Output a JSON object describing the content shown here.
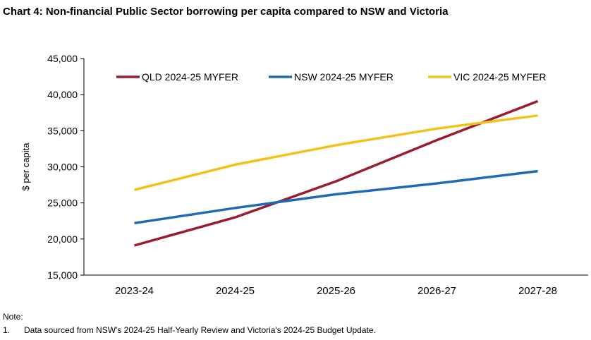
{
  "chart_data": {
    "type": "line",
    "title": "Chart 4: Non-financial Public Sector borrowing per capita compared to NSW and Victoria",
    "xlabel": "",
    "ylabel": "$ per capita",
    "categories": [
      "2023-24",
      "2024-25",
      "2025-26",
      "2026-27",
      "2027-28"
    ],
    "ylim": [
      15000,
      45000
    ],
    "yticks": [
      15000,
      20000,
      25000,
      30000,
      35000,
      40000,
      45000
    ],
    "ytick_labels": [
      "15,000",
      "20,000",
      "25,000",
      "30,000",
      "35,000",
      "40,000",
      "45,000"
    ],
    "grid": false,
    "legend_position": "top",
    "series": [
      {
        "name": "QLD 2024-25 MYFER",
        "color": "#9B1B30",
        "values": [
          19100,
          23000,
          28000,
          33700,
          39100
        ]
      },
      {
        "name": "NSW 2024-25 MYFER",
        "color": "#1F6BB3",
        "values": [
          22200,
          24300,
          26200,
          27700,
          29400
        ]
      },
      {
        "name": "VIC 2024-25 MYFER",
        "color": "#F2C21B",
        "values": [
          26800,
          30300,
          33000,
          35300,
          37100
        ]
      }
    ]
  },
  "notes": {
    "label": "Note:",
    "items": [
      {
        "num": "1.",
        "text": "Data sourced from NSW's 2024-25 Half-Yearly Review and Victoria's 2024-25 Budget Update."
      }
    ]
  }
}
